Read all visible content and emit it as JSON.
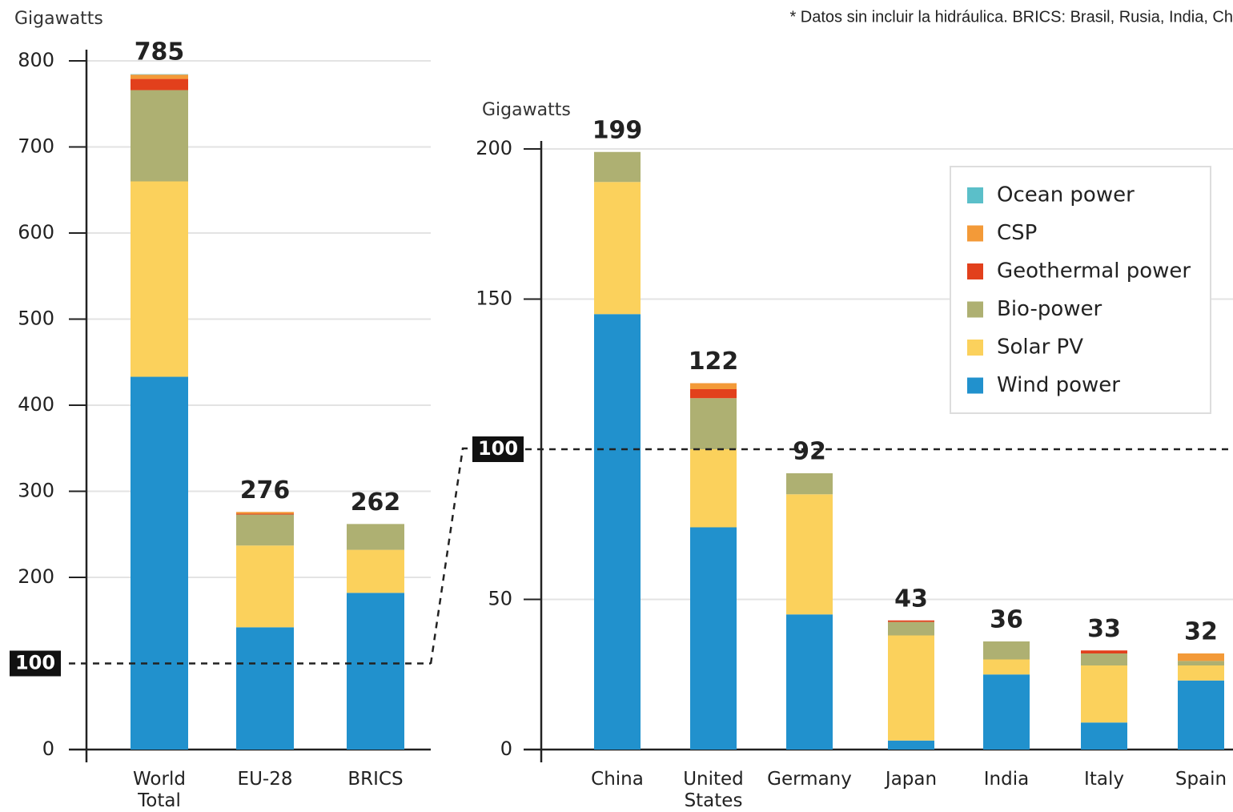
{
  "note": "* Datos sin incluir la hidráulica. BRICS: Brasil, Rusia, India, Ch",
  "chart_data": [
    {
      "type": "stacked_bar",
      "axis_label": "Gigawatts",
      "categories": [
        "World Total",
        "EU-28",
        "BRICS"
      ],
      "series": [
        {
          "color": "#2191cd",
          "values": [
            433,
            142,
            182
          ]
        },
        {
          "color": "#fbd15c",
          "values": [
            227,
            95,
            50
          ]
        },
        {
          "color": "#aeb072",
          "values": [
            106,
            36,
            30
          ]
        },
        {
          "color": "#e2401c",
          "values": [
            13,
            1,
            0
          ]
        },
        {
          "color": "#f39a38",
          "values": [
            5,
            2,
            0
          ]
        },
        {
          "color": "#5bbfc9",
          "values": [
            0.5,
            0,
            0
          ]
        }
      ],
      "totals": [
        785,
        276,
        262
      ],
      "ylim": [
        0,
        800
      ],
      "yticks": [
        0,
        200,
        300,
        400,
        500,
        600,
        700,
        800
      ],
      "reference_line": 100,
      "grid": true,
      "legend": false
    },
    {
      "type": "stacked_bar",
      "axis_label": "Gigawatts",
      "categories": [
        "China",
        "United States",
        "Germany",
        "Japan",
        "India",
        "Italy",
        "Spain"
      ],
      "series": [
        {
          "name": "Wind power",
          "color": "#2191cd",
          "values": [
            145,
            74,
            45,
            3,
            25,
            9,
            23
          ]
        },
        {
          "name": "Solar PV",
          "color": "#fbd15c",
          "values": [
            44,
            26,
            40,
            35,
            5,
            19,
            5
          ]
        },
        {
          "name": "Bio-power",
          "color": "#aeb072",
          "values": [
            10,
            17,
            7,
            4.5,
            6,
            4,
            1.5
          ]
        },
        {
          "name": "Geothermal power",
          "color": "#e2401c",
          "values": [
            0,
            3,
            0,
            0.5,
            0,
            1,
            0
          ]
        },
        {
          "name": "CSP",
          "color": "#f39a38",
          "values": [
            0,
            2,
            0,
            0,
            0,
            0,
            2.5
          ]
        },
        {
          "name": "Ocean power",
          "color": "#5bbfc9",
          "values": [
            0,
            0,
            0,
            0,
            0,
            0,
            0
          ]
        }
      ],
      "totals": [
        199,
        122,
        92,
        43,
        36,
        33,
        32
      ],
      "ylim": [
        0,
        200
      ],
      "yticks": [
        0,
        50,
        150,
        200
      ],
      "reference_line": 100,
      "grid": true,
      "legend": true
    }
  ]
}
